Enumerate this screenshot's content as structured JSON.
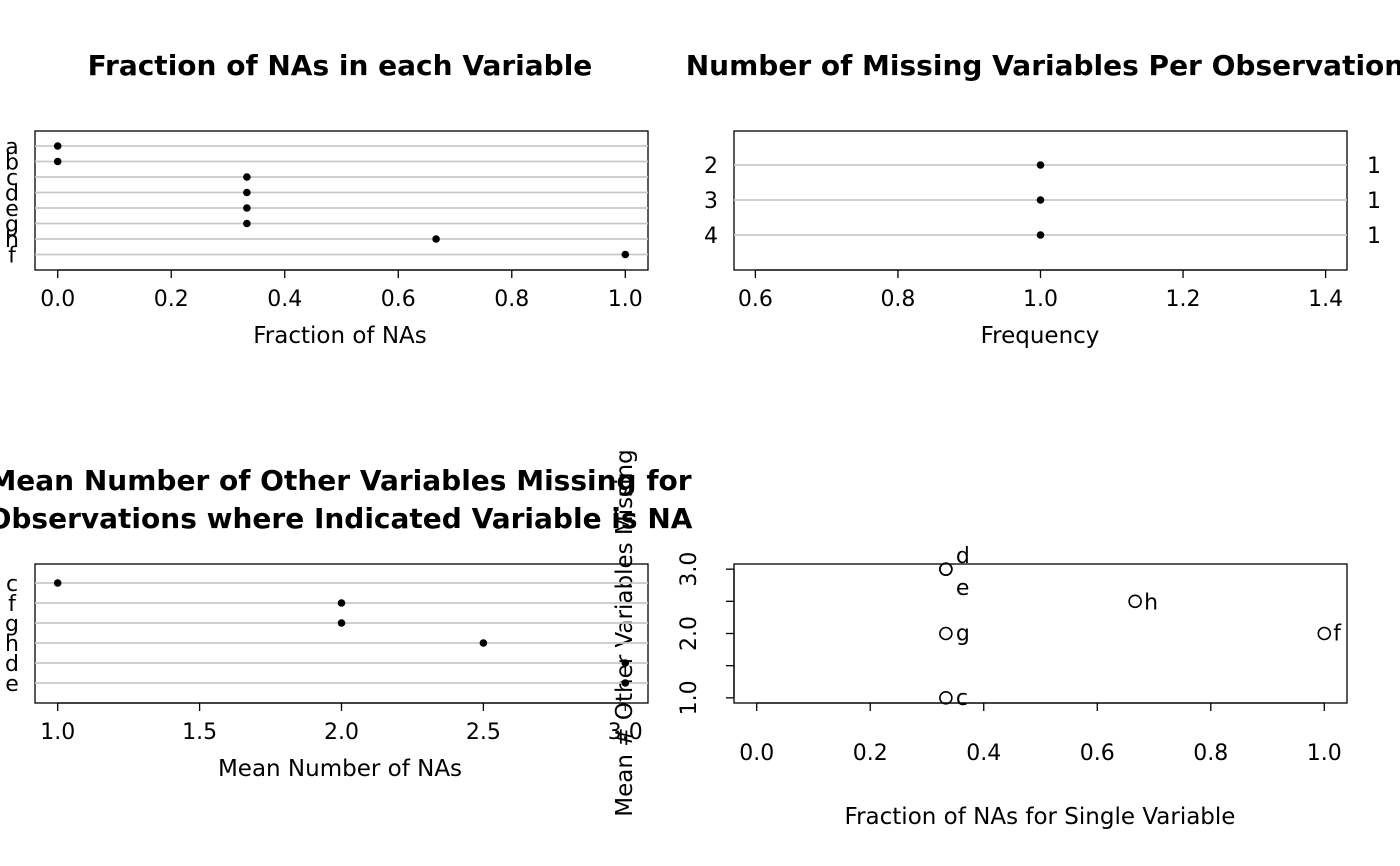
{
  "colors": {
    "grid": "#c8c8c8",
    "ink": "#000000",
    "background": "#ffffff"
  },
  "chart_data": [
    {
      "id": "p1",
      "type": "scatter",
      "style": "dotchart",
      "title": "Fraction of NAs in each Variable",
      "xlabel": "Fraction of NAs",
      "ylabel": "",
      "categories": [
        "a",
        "b",
        "c",
        "d",
        "e",
        "g",
        "h",
        "f"
      ],
      "values": [
        0,
        0,
        0.3333,
        0.3333,
        0.3333,
        0.3333,
        0.6667,
        1.0
      ],
      "xlim": [
        -0.04,
        1.04
      ],
      "xticks": [
        "0.0",
        "0.2",
        "0.4",
        "0.6",
        "0.8",
        "1.0"
      ],
      "grid": true
    },
    {
      "id": "p2",
      "type": "scatter",
      "style": "dotchart",
      "title": "Number of Missing Variables Per Observation",
      "xlabel": "Frequency",
      "ylabel": "",
      "categories": [
        "2",
        "3",
        "4"
      ],
      "values": [
        1,
        1,
        1
      ],
      "right_labels": [
        "1",
        "1",
        "1"
      ],
      "xlim": [
        0.57,
        1.43
      ],
      "xticks": [
        "0.6",
        "0.8",
        "1.0",
        "1.2",
        "1.4"
      ],
      "grid": true
    },
    {
      "id": "p3",
      "type": "scatter",
      "style": "dotchart",
      "title": [
        "Mean Number of Other Variables Missing for",
        "Observations where Indicated Variable is NA"
      ],
      "xlabel": "Mean Number of NAs",
      "ylabel": "",
      "categories": [
        "c",
        "f",
        "g",
        "h",
        "d",
        "e"
      ],
      "values": [
        1.0,
        2.0,
        2.0,
        2.5,
        3.0,
        3.0
      ],
      "xlim": [
        0.92,
        3.08
      ],
      "xticks": [
        "1.0",
        "1.5",
        "2.0",
        "2.5",
        "3.0"
      ],
      "grid": true
    },
    {
      "id": "p4",
      "type": "scatter",
      "title": "",
      "xlabel": "Fraction of NAs for Single Variable",
      "ylabel": "Mean # Other Variables Missing",
      "points": [
        {
          "x": 0.3333,
          "y": 3.0,
          "label": "d"
        },
        {
          "x": 0.3333,
          "y": 3.0,
          "label": "e"
        },
        {
          "x": 0.6667,
          "y": 2.5,
          "label": "h"
        },
        {
          "x": 0.3333,
          "y": 2.0,
          "label": "g"
        },
        {
          "x": 1.0,
          "y": 2.0,
          "label": "f"
        },
        {
          "x": 0.3333,
          "y": 1.0,
          "label": "c"
        }
      ],
      "xlim": [
        -0.04,
        1.04
      ],
      "ylim": [
        0.92,
        3.08
      ],
      "xticks": [
        "0.0",
        "0.2",
        "0.4",
        "0.6",
        "0.8",
        "1.0"
      ],
      "yticks": [
        "1.0",
        "",
        "2.0",
        "",
        "3.0"
      ],
      "grid": false
    }
  ]
}
